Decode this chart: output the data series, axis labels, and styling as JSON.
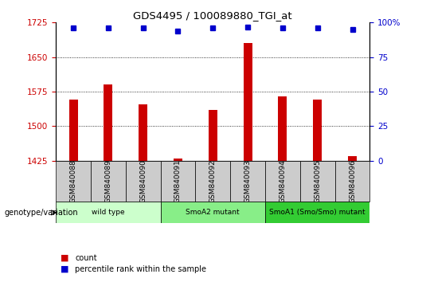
{
  "title": "GDS4495 / 100089880_TGI_at",
  "samples": [
    "GSM840088",
    "GSM840089",
    "GSM840090",
    "GSM840091",
    "GSM840092",
    "GSM840093",
    "GSM840094",
    "GSM840095",
    "GSM840096"
  ],
  "counts": [
    1558,
    1590,
    1548,
    1430,
    1535,
    1680,
    1565,
    1557,
    1435
  ],
  "percentile_ranks": [
    96,
    96,
    96,
    94,
    96,
    97,
    96,
    96,
    95
  ],
  "ylim_left": [
    1425,
    1725
  ],
  "ylim_right": [
    0,
    100
  ],
  "yticks_left": [
    1425,
    1500,
    1575,
    1650,
    1725
  ],
  "yticks_right": [
    0,
    25,
    50,
    75,
    100
  ],
  "bar_color": "#cc0000",
  "marker_color": "#0000cc",
  "groups": [
    {
      "label": "wild type",
      "start": 0,
      "end": 3,
      "color": "#ccffcc"
    },
    {
      "label": "SmoA2 mutant",
      "start": 3,
      "end": 6,
      "color": "#88ee88"
    },
    {
      "label": "SmoA1 (Smo/Smo) mutant",
      "start": 6,
      "end": 9,
      "color": "#33cc33"
    }
  ],
  "legend_items": [
    {
      "label": "count",
      "color": "#cc0000"
    },
    {
      "label": "percentile rank within the sample",
      "color": "#0000cc"
    }
  ],
  "genotype_label": "genotype/variation",
  "background_color": "#ffffff",
  "tick_color_left": "#cc0000",
  "tick_color_right": "#0000cc",
  "sample_box_color": "#cccccc",
  "bar_width": 0.25
}
